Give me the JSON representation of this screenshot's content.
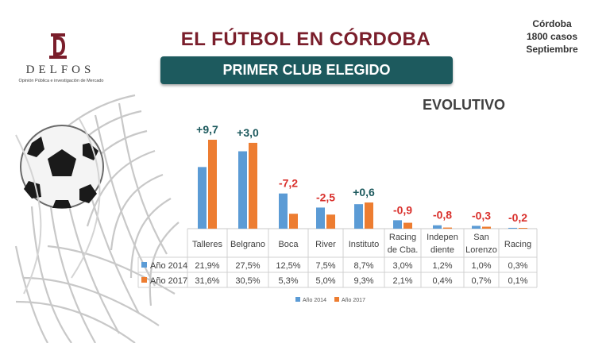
{
  "logo": {
    "name": "DELFOS",
    "tagline": "Opinión Pública e investigación de Mercado"
  },
  "title": "EL FÚTBOL EN CÓRDOBA",
  "subtitle": "PRIMER CLUB ELEGIDO",
  "meta": {
    "place": "Córdoba",
    "cases": "1800 casos",
    "month": "Septiembre"
  },
  "section_label": "EVOLUTIVO",
  "colors": {
    "series_2014": "#5b9bd5",
    "series_2017": "#ed7d31",
    "positive": "#1d5a5e",
    "negative": "#d9302c",
    "title": "#7a1e2b",
    "banner": "#1d5a5e"
  },
  "chart_data": {
    "type": "bar",
    "categories": [
      [
        "Talleres"
      ],
      [
        "Belgrano"
      ],
      [
        "Boca"
      ],
      [
        "River"
      ],
      [
        "Instituto"
      ],
      [
        "Racing",
        "de Cba."
      ],
      [
        "Indepen",
        "diente"
      ],
      [
        "San",
        "Lorenzo"
      ],
      [
        "Racing"
      ]
    ],
    "series": [
      {
        "name": "Año 2014",
        "values": [
          21.9,
          27.5,
          12.5,
          7.5,
          8.7,
          3.0,
          1.2,
          1.0,
          0.3
        ],
        "labels": [
          "21,9%",
          "27,5%",
          "12,5%",
          "7,5%",
          "8,7%",
          "3,0%",
          "1,2%",
          "1,0%",
          "0,3%"
        ]
      },
      {
        "name": "Año 2017",
        "values": [
          31.6,
          30.5,
          5.3,
          5.0,
          9.3,
          2.1,
          0.4,
          0.7,
          0.1
        ],
        "labels": [
          "31,6%",
          "30,5%",
          "5,3%",
          "5,0%",
          "9,3%",
          "2,1%",
          "0,4%",
          "0,7%",
          "0,1%"
        ]
      }
    ],
    "differences": [
      "+9,7",
      "+3,0",
      "-7,2",
      "-2,5",
      "+0,6",
      "-0,9",
      "-0,8",
      "-0,3",
      "-0,2"
    ],
    "ylim": [
      0,
      33
    ],
    "legend": "bottom",
    "grid": false,
    "data_table": true
  }
}
